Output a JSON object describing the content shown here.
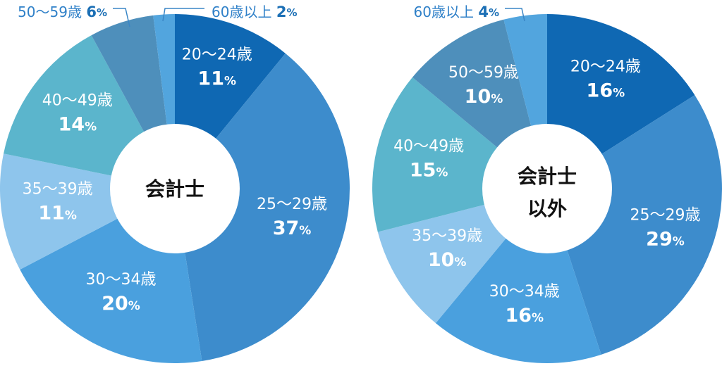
{
  "chart_data": [
    {
      "type": "pie",
      "center_label": [
        "会計士"
      ],
      "unit": "%",
      "slices": [
        {
          "label": "20〜24歳",
          "value": 11,
          "color": "#0f68b3"
        },
        {
          "label": "25〜29歳",
          "value": 37,
          "color": "#3d8ccc"
        },
        {
          "label": "30〜34歳",
          "value": 20,
          "color": "#4aa0de"
        },
        {
          "label": "35〜39歳",
          "value": 11,
          "color": "#8ec5ec"
        },
        {
          "label": "40〜49歳",
          "value": 14,
          "color": "#5bb5cc"
        },
        {
          "label": "50〜59歳",
          "value": 6,
          "color": "#4e8fbb"
        },
        {
          "label": "60歳以上",
          "value": 2,
          "color": "#52a5de"
        }
      ]
    },
    {
      "type": "pie",
      "center_label": [
        "会計士",
        "以外"
      ],
      "unit": "%",
      "slices": [
        {
          "label": "20〜24歳",
          "value": 16,
          "color": "#0f68b3"
        },
        {
          "label": "25〜29歳",
          "value": 29,
          "color": "#3d8ccc"
        },
        {
          "label": "30〜34歳",
          "value": 16,
          "color": "#4aa0de"
        },
        {
          "label": "35〜39歳",
          "value": 10,
          "color": "#8ec5ec"
        },
        {
          "label": "40〜49歳",
          "value": 15,
          "color": "#5bb5cc"
        },
        {
          "label": "50〜59歳",
          "value": 10,
          "color": "#4e8fbb"
        },
        {
          "label": "60歳以上",
          "value": 4,
          "color": "#52a5de"
        }
      ]
    }
  ]
}
